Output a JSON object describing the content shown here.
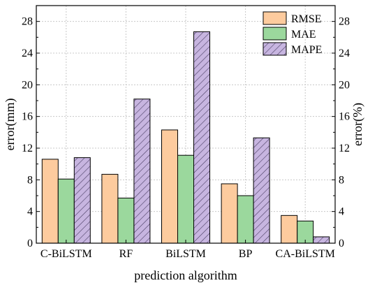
{
  "chart_data": {
    "type": "bar",
    "categories": [
      "C-BiLSTM",
      "RF",
      "BiLSTM",
      "BP",
      "CA-BiLSTM"
    ],
    "series": [
      {
        "name": "RMSE",
        "axis": "left",
        "color": "#fdcb9e",
        "pattern": "none",
        "values": [
          10.6,
          8.7,
          14.3,
          7.5,
          3.5
        ]
      },
      {
        "name": "MAE",
        "axis": "left",
        "color": "#9bd89d",
        "pattern": "none",
        "values": [
          8.1,
          5.7,
          11.1,
          6.0,
          2.8
        ]
      },
      {
        "name": "MAPE",
        "axis": "right",
        "color": "#c7b5e0",
        "pattern": "diagonal-hatch",
        "values": [
          10.8,
          18.2,
          26.7,
          13.3,
          0.8
        ]
      }
    ],
    "xlabel": "prediction algorithm",
    "ylabel": "error(mm)",
    "y2label": "error(%)",
    "ylim": [
      0,
      30
    ],
    "y2lim": [
      0,
      30
    ],
    "yticks": [
      0,
      4,
      8,
      12,
      16,
      20,
      24,
      28
    ],
    "y2ticks": [
      0,
      4,
      8,
      12,
      16,
      20,
      24,
      28
    ],
    "grid": true,
    "legend_position": "top-right"
  }
}
